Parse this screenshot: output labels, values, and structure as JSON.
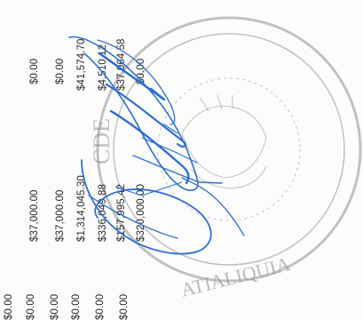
{
  "document": {
    "columns": [
      {
        "cells": [
          "$0.00",
          "$0.00",
          "$0.00",
          "$0.00",
          "$0.00",
          "$0.00"
        ]
      },
      {
        "cells": [
          "$37,000.00",
          "$37,000.00",
          "$1,314,045.30",
          "$336,049.88",
          "$157,995.42",
          "$320,000.00"
        ]
      },
      {
        "cells": [
          "$0.00",
          "$0.00",
          "$41,574.70",
          "$4,510.12",
          "$37,064.58",
          "$0.00"
        ]
      }
    ]
  },
  "seal": {
    "text_bottom": "ATIALIQUIA",
    "text_left": "CDE",
    "color": "#8f8f8f"
  },
  "signature": {
    "color": "#2f6fd1"
  }
}
